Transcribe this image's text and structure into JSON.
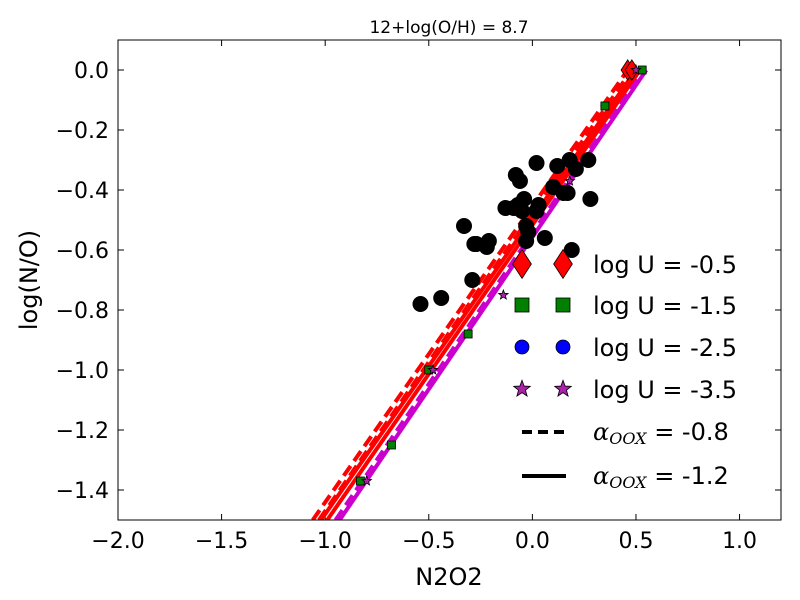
{
  "chart_data": {
    "type": "scatter",
    "title": "12+log(O/H) = 8.7",
    "xlabel": "N2O2",
    "ylabel": "log(N/O)",
    "xlim": [
      -2.0,
      1.2
    ],
    "ylim": [
      -1.5,
      0.1
    ],
    "xticks": [
      -2.0,
      -1.5,
      -1.0,
      -0.5,
      0.0,
      0.5,
      1.0
    ],
    "xtick_labels": [
      "−2.0",
      "−1.5",
      "−1.0",
      "−0.5",
      "0.0",
      "0.5",
      "1.0"
    ],
    "yticks": [
      0.0,
      -0.2,
      -0.4,
      -0.6,
      -0.8,
      -1.0,
      -1.2,
      -1.4
    ],
    "ytick_labels": [
      "0.0",
      "−0.2",
      "−0.4",
      "−0.6",
      "−0.8",
      "−1.0",
      "−1.2",
      "−1.4"
    ],
    "grid": false,
    "legend_position": "lower-right",
    "lines": [
      {
        "color": "#ff0000",
        "style": "dashed",
        "alpha_oox": "-0.8",
        "log_u": "-0.5",
        "x": [
          -1.06,
          0.46
        ],
        "y": [
          -1.5,
          0.0
        ]
      },
      {
        "color": "#ff0000",
        "style": "dashed",
        "alpha_oox": "-0.8",
        "log_u": "-1.5",
        "x": [
          -1.03,
          0.48
        ],
        "y": [
          -1.5,
          0.0
        ]
      },
      {
        "color": "#ff0000",
        "style": "solid",
        "alpha_oox": "-1.2",
        "log_u": "-0.5",
        "x": [
          -1.02,
          0.5
        ],
        "y": [
          -1.5,
          0.0
        ]
      },
      {
        "color": "#ff0000",
        "style": "solid",
        "alpha_oox": "-1.2",
        "log_u": "-1.5",
        "x": [
          -0.99,
          0.52
        ],
        "y": [
          -1.5,
          0.0
        ]
      },
      {
        "color": "#cc00cc",
        "style": "dashed",
        "alpha_oox": "-0.8",
        "log_u": "-3.5",
        "x": [
          -0.95,
          0.54
        ],
        "y": [
          -1.5,
          0.0
        ]
      },
      {
        "color": "#cc00cc",
        "style": "solid",
        "alpha_oox": "-1.2",
        "log_u": "-3.5",
        "x": [
          -0.93,
          0.55
        ],
        "y": [
          -1.5,
          0.0
        ]
      }
    ],
    "model_markers": [
      {
        "shape": "diamond",
        "color": "#ff0000",
        "x": [
          0.46,
          0.48
        ],
        "y": [
          0.0,
          0.0
        ]
      },
      {
        "shape": "square",
        "color": "#008000",
        "x": [
          -0.83,
          -0.68,
          -0.5,
          -0.31,
          0.35,
          0.53
        ],
        "y": [
          -1.37,
          -1.25,
          -1.0,
          -0.88,
          -0.12,
          0.0
        ]
      },
      {
        "shape": "star",
        "color": "#aa22aa",
        "x": [
          -0.8,
          -0.48,
          -0.14,
          0.18,
          0.5
        ],
        "y": [
          -1.37,
          -1.0,
          -0.75,
          -0.37,
          0.0
        ]
      }
    ],
    "observations": {
      "color": "#000000",
      "x": [
        -0.54,
        -0.44,
        -0.33,
        -0.28,
        -0.29,
        -0.27,
        -0.21,
        -0.22,
        -0.13,
        -0.08,
        -0.06,
        -0.04,
        -0.05,
        -0.07,
        -0.09,
        -0.03,
        -0.02,
        -0.03,
        0.02,
        0.03,
        0.06,
        0.1,
        0.12,
        0.15,
        0.18,
        0.21,
        0.27,
        0.28,
        0.19,
        0.17,
        0.02
      ],
      "y": [
        -0.78,
        -0.76,
        -0.52,
        -0.58,
        -0.7,
        -0.58,
        -0.57,
        -0.59,
        -0.46,
        -0.35,
        -0.37,
        -0.43,
        -0.47,
        -0.45,
        -0.46,
        -0.52,
        -0.54,
        -0.57,
        -0.31,
        -0.45,
        -0.56,
        -0.39,
        -0.32,
        -0.41,
        -0.3,
        -0.33,
        -0.3,
        -0.43,
        -0.6,
        -0.41,
        -0.47
      ]
    },
    "legend": [
      {
        "marker": "diamond",
        "color": "#ff0000",
        "label": "log U = -0.5"
      },
      {
        "marker": "square",
        "color": "#008000",
        "label": "log U = -1.5"
      },
      {
        "marker": "circle",
        "color": "#0000ff",
        "label": "log U = -2.5"
      },
      {
        "marker": "star",
        "color": "#aa22aa",
        "label": "log U = -3.5"
      },
      {
        "marker": "dashed-line",
        "color": "#000000",
        "symbol": "α",
        "subscript": "OOX",
        "value": " = -0.8"
      },
      {
        "marker": "solid-line",
        "color": "#000000",
        "symbol": "α",
        "subscript": "OOX",
        "value": " = -1.2"
      }
    ]
  }
}
